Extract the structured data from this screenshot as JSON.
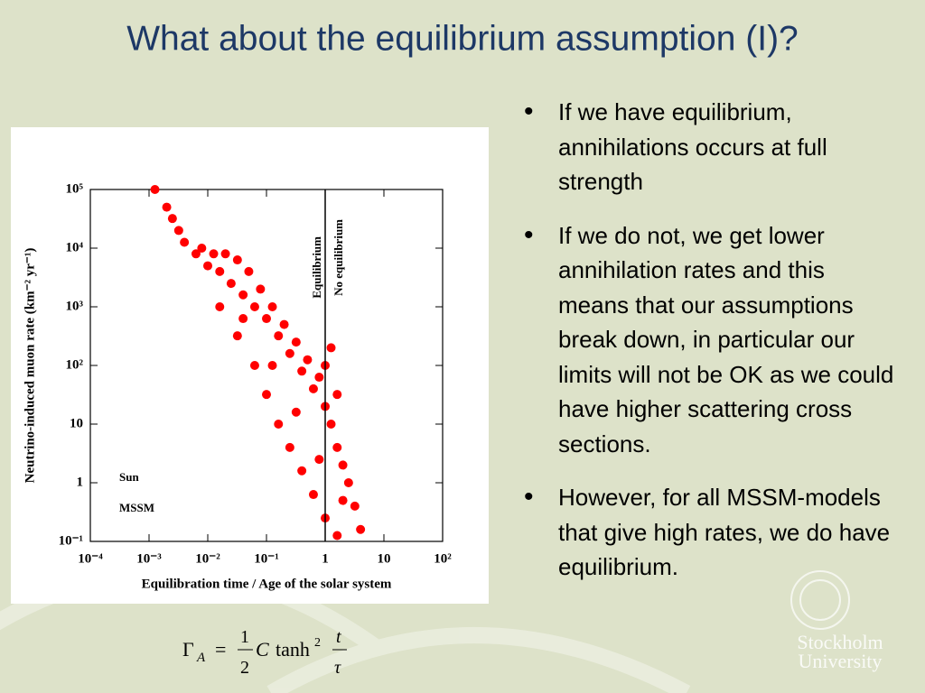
{
  "slide": {
    "title": "What about the equilibrium assumption (I)?",
    "bullets": [
      "If we have equilibrium, annihilations occurs at full strength",
      "If we do not, we get lower annihilation rates and this means that our assumptions break down, in particular our limits will not be OK as we could have higher scattering cross sections.",
      "However, for all MSSM-models that give high rates, we do have equilibrium."
    ],
    "formula": {
      "lhs": "Γ",
      "sub": "A",
      "eq": "=",
      "num": "1",
      "den": "2",
      "c": "C",
      "fn": "tanh",
      "pow": "2",
      "t": "t",
      "tau": "τ"
    },
    "logo": [
      "Stockholm",
      "University"
    ]
  },
  "chart_data": {
    "type": "scatter",
    "xlabel": "Equilibration time / Age of the solar system",
    "ylabel": "Neutrino-induced muon rate (km⁻² yr⁻¹)",
    "annotations": [
      "Equilibrium",
      "No equilibrium",
      "Sun",
      "MSSM"
    ],
    "log_x": true,
    "log_y": true,
    "color": "#ff0000",
    "vline": 1,
    "xlim": [
      0.0001,
      100
    ],
    "ylim": [
      0.1,
      100000
    ],
    "xticks": [
      {
        "value": 0.0001,
        "label": "10⁻⁴"
      },
      {
        "value": 0.001,
        "label": "10⁻³"
      },
      {
        "value": 0.01,
        "label": "10⁻²"
      },
      {
        "value": 0.1,
        "label": "10⁻¹"
      },
      1,
      10,
      {
        "value": 100,
        "label": "10²"
      }
    ],
    "yticks": [
      {
        "value": 0.1,
        "label": "10⁻¹"
      },
      1,
      10,
      {
        "value": 100,
        "label": "10²"
      },
      {
        "value": 1000,
        "label": "10³"
      },
      {
        "value": 10000,
        "label": "10⁴"
      },
      {
        "value": 100000,
        "label": "10⁵"
      }
    ],
    "x": [
      0.00126,
      0.002,
      0.0025,
      0.0032,
      0.004,
      0.0063,
      0.0079,
      0.01,
      0.0126,
      0.016,
      0.02,
      0.025,
      0.032,
      0.04,
      0.05,
      0.063,
      0.079,
      0.1,
      0.126,
      0.16,
      0.2,
      0.25,
      0.32,
      0.4,
      0.5,
      0.63,
      0.79,
      1,
      1.26,
      1.6,
      2,
      2.5,
      3.2,
      4,
      0.032,
      0.063,
      0.1,
      0.16,
      0.25,
      0.4,
      0.63,
      1,
      1.6,
      0.016,
      0.04,
      0.126,
      0.32,
      0.79,
      2,
      1.26,
      1,
      1.6
    ],
    "y": [
      100000,
      50000,
      32000,
      20000,
      12600,
      8000,
      10000,
      5000,
      8000,
      4000,
      8000,
      2500,
      6300,
      1600,
      4000,
      1000,
      2000,
      630,
      1000,
      320,
      500,
      160,
      250,
      80,
      125,
      40,
      63,
      20,
      10,
      4,
      2,
      1,
      0.4,
      0.16,
      320,
      100,
      32,
      10,
      4,
      1.6,
      0.63,
      0.25,
      0.126,
      1000,
      630,
      100,
      16,
      2.5,
      0.5,
      200,
      100,
      32
    ]
  }
}
